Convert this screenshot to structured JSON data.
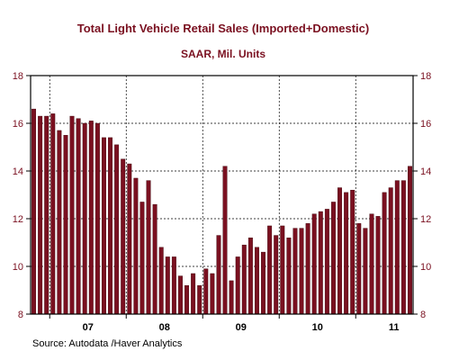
{
  "chart_data": {
    "type": "bar",
    "title": "Total Light Vehicle Retail Sales (Imported+Domestic)",
    "subtitle": "SAAR, Mil. Units",
    "source": "Source:  Autodata /Haver Analytics",
    "ylim": [
      8,
      18
    ],
    "yticks": [
      8,
      10,
      12,
      14,
      16,
      18
    ],
    "year_labels": [
      "07",
      "08",
      "09",
      "10",
      "11"
    ],
    "grid": true,
    "colors": {
      "bar": "#7a1020",
      "frame": "#000000",
      "grid": "#000000"
    },
    "series": [
      {
        "values": [
          16.6,
          16.3,
          16.3,
          16.4,
          15.7,
          15.5,
          16.3,
          16.2,
          16.0,
          16.1,
          16.0,
          15.4,
          15.4,
          15.1,
          14.5,
          14.3,
          13.7,
          12.7,
          13.6,
          12.6,
          10.8,
          10.4,
          10.4,
          9.6,
          9.2,
          9.7,
          9.2,
          9.9,
          9.7,
          11.3,
          14.2,
          9.4,
          10.4,
          10.9,
          11.2,
          10.8,
          10.6,
          11.7,
          11.3,
          11.7,
          11.2,
          11.6,
          11.6,
          11.8,
          12.2,
          12.3,
          12.4,
          12.7,
          13.3,
          13.1,
          13.2,
          11.8,
          11.6,
          12.2,
          12.1,
          13.1,
          13.3,
          13.6,
          13.6,
          14.2
        ]
      }
    ]
  }
}
